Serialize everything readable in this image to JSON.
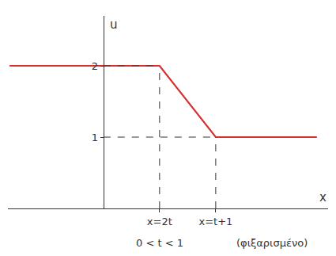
{
  "chart_data": {
    "type": "line",
    "x_label": "x",
    "y_label": "u",
    "x": [
      -1.67,
      1,
      2,
      3.8
    ],
    "values": [
      2,
      2,
      1,
      1
    ],
    "color": "#d62f2f",
    "xlim": [
      -1.7,
      4.0
    ],
    "ylim": [
      0,
      2.7
    ],
    "xticks": [
      {
        "value": 1,
        "label": "x=2t"
      },
      {
        "value": 2,
        "label": "x=t+1"
      }
    ],
    "yticks": [
      1,
      2
    ],
    "annotations": [
      "0 < t < 1",
      "(φιξαρισμένο)"
    ],
    "grid": false
  }
}
